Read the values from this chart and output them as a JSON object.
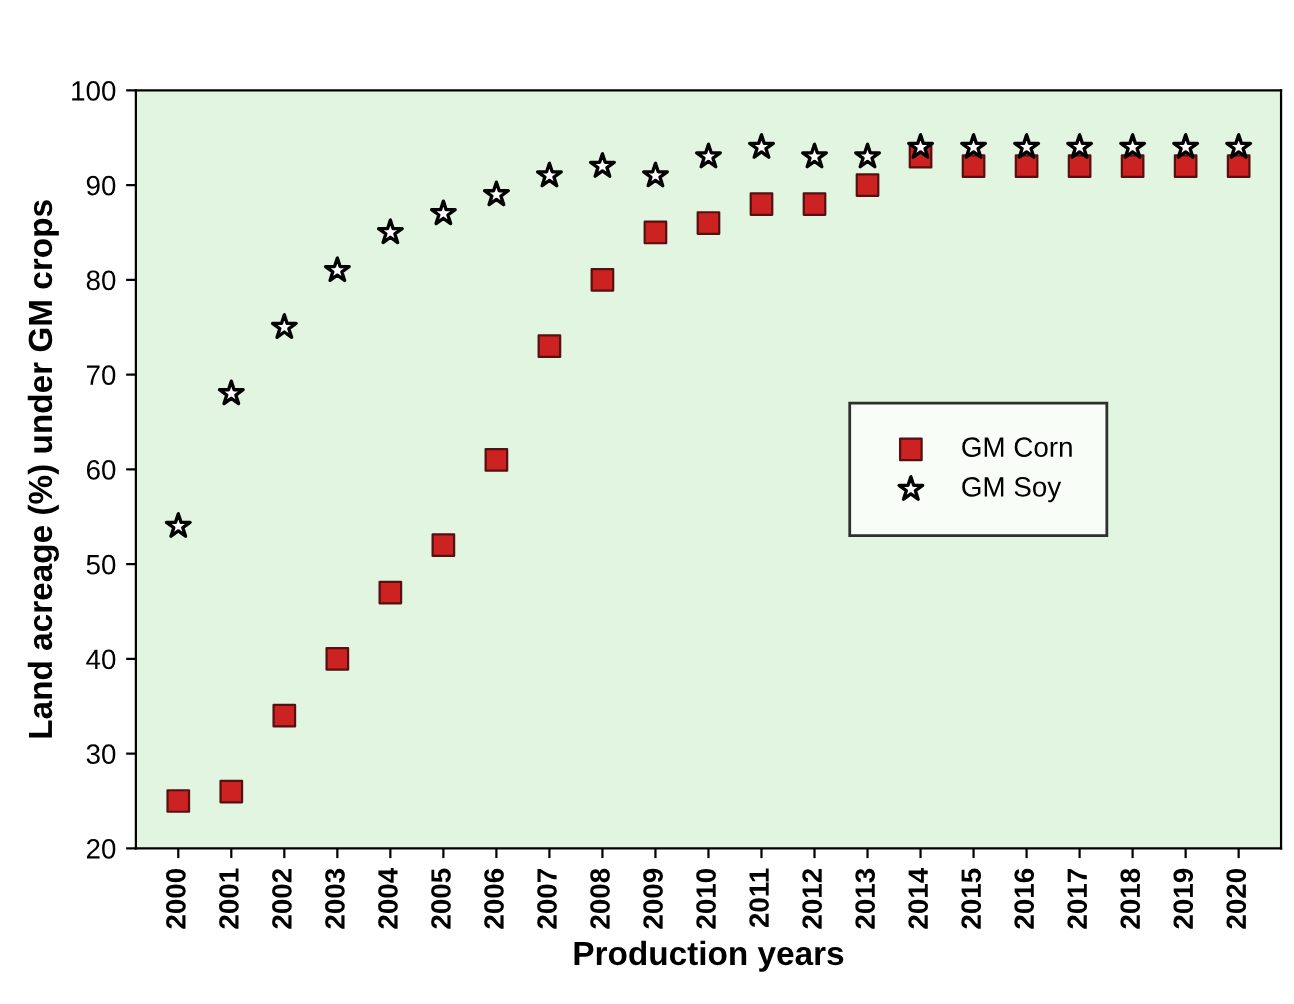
{
  "chart_data": {
    "type": "scatter",
    "xlabel": "Production years",
    "ylabel": "Land acreage (%) under GM crops",
    "categories": [
      "2000",
      "2001",
      "2002",
      "2003",
      "2004",
      "2005",
      "2006",
      "2007",
      "2008",
      "2009",
      "2010",
      "2011",
      "2012",
      "2013",
      "2014",
      "2015",
      "2016",
      "2017",
      "2018",
      "2019",
      "2020"
    ],
    "series": [
      {
        "name": "GM Corn",
        "color": "#cc2222",
        "marker": "square",
        "values": [
          25,
          26,
          34,
          40,
          47,
          52,
          61,
          73,
          80,
          85,
          86,
          88,
          88,
          90,
          93,
          92,
          92,
          92,
          92,
          92,
          92
        ]
      },
      {
        "name": "GM Soy",
        "color": "#000000",
        "marker": "star",
        "values": [
          54,
          68,
          75,
          81,
          85,
          87,
          89,
          91,
          92,
          91,
          93,
          94,
          93,
          93,
          94,
          94,
          94,
          94,
          94,
          94,
          94
        ]
      }
    ],
    "ylim": [
      20,
      100
    ],
    "yticks": [
      20,
      30,
      40,
      50,
      60,
      70,
      80,
      90,
      100
    ],
    "grid": false,
    "legend": "center right"
  }
}
